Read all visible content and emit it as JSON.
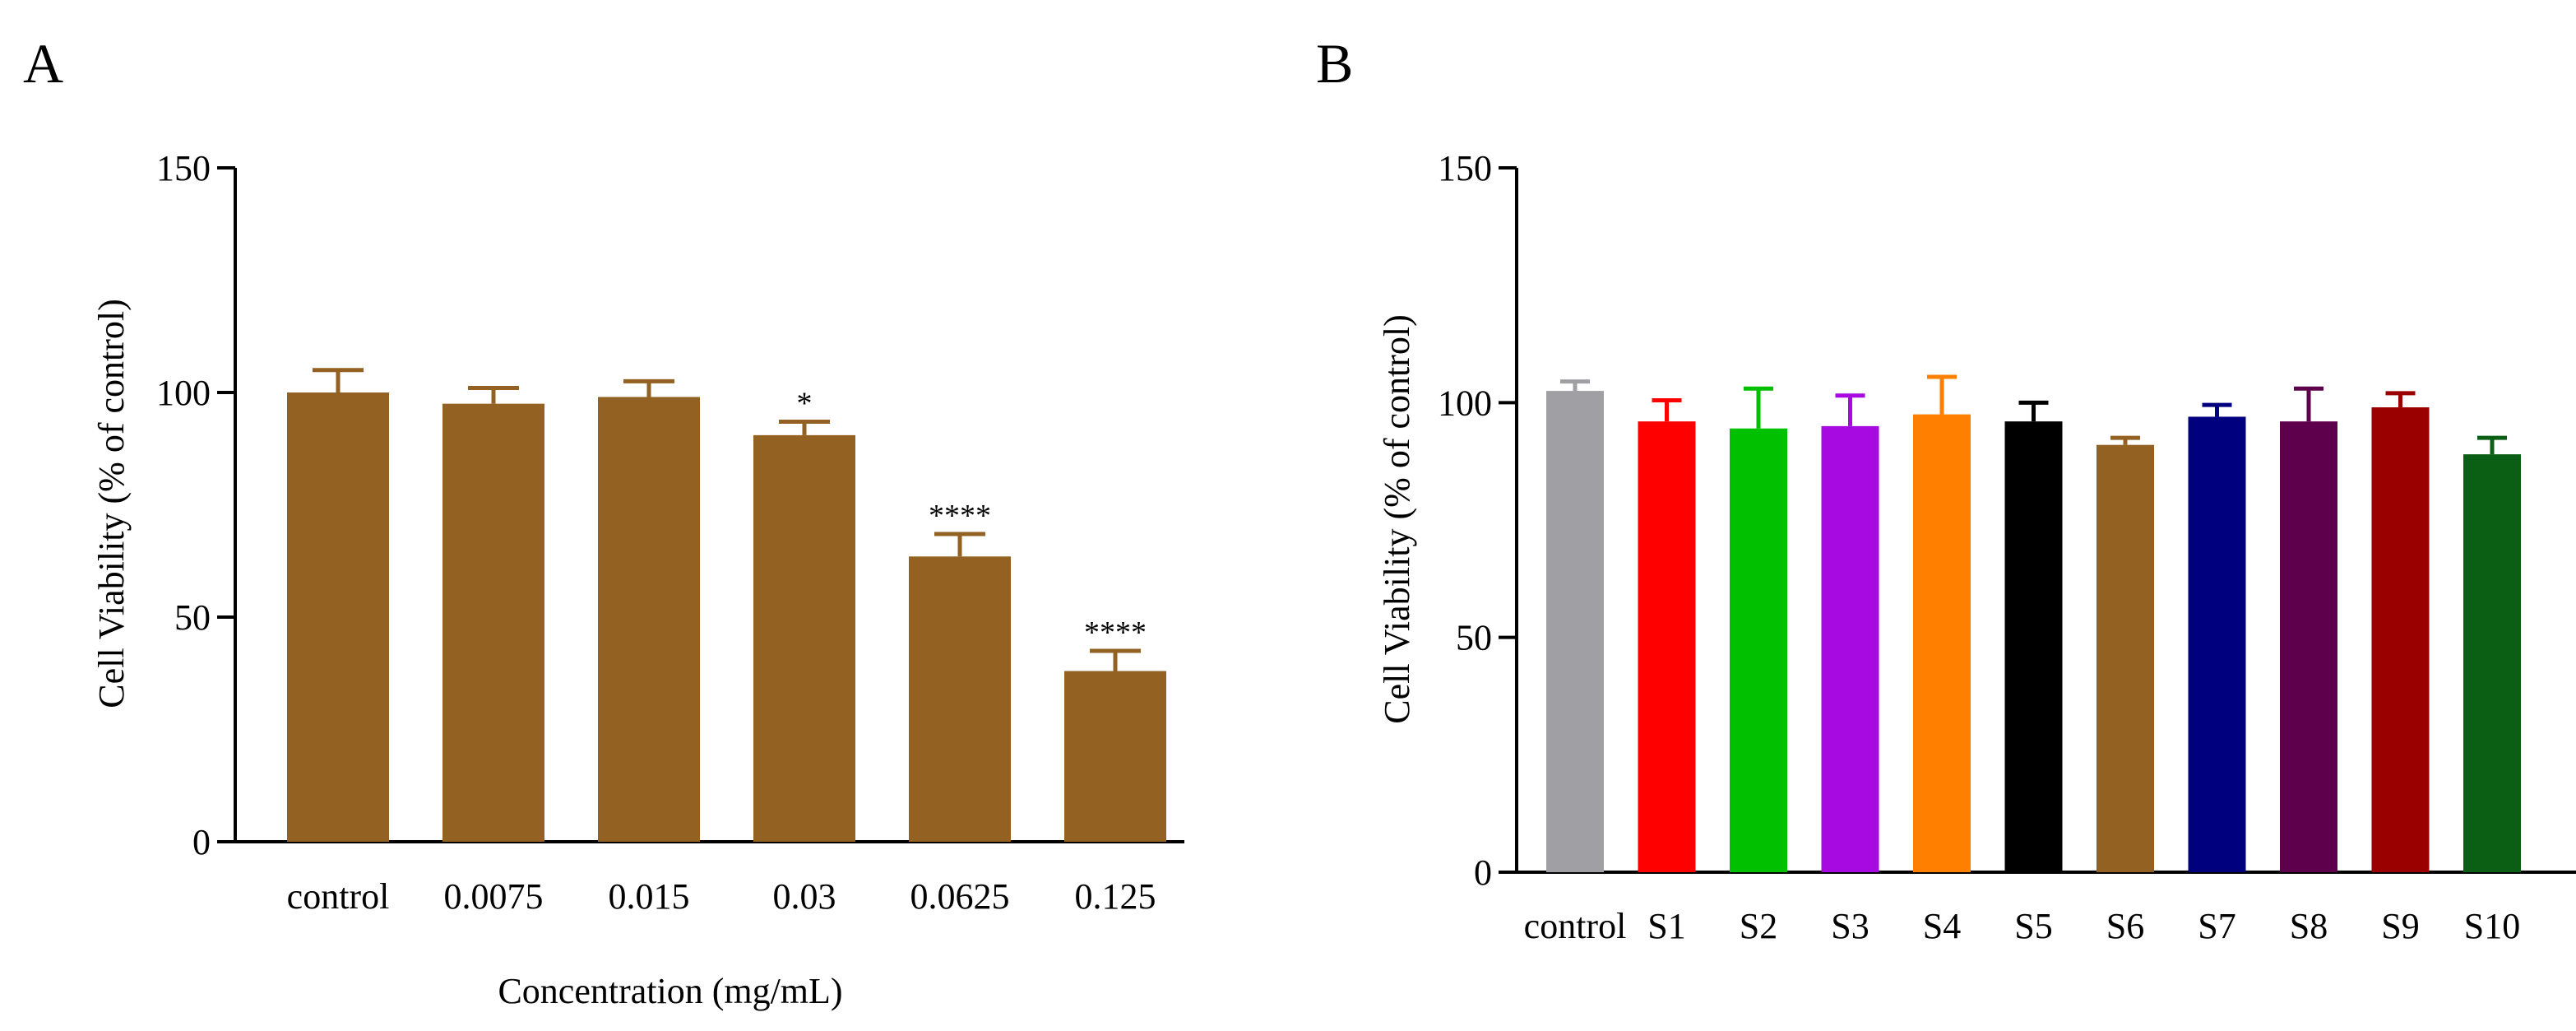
{
  "chart_data": [
    {
      "type": "bar",
      "panel_label": "A",
      "categories": [
        "control",
        "0.0075",
        "0.015",
        "0.03",
        "0.0625",
        "0.125"
      ],
      "values": [
        100,
        97.5,
        99,
        90.5,
        63.5,
        38
      ],
      "errors": [
        5,
        3.5,
        3.5,
        3,
        5,
        4.5
      ],
      "significance": [
        "",
        "",
        "",
        "*",
        "****",
        "****"
      ],
      "colors": [
        "#936121",
        "#936121",
        "#936121",
        "#936121",
        "#936121",
        "#936121"
      ],
      "xlabel": "Concentration (mg/mL)",
      "ylabel": "Cell Viability (% of control)",
      "ylim": [
        0,
        150
      ],
      "yticks": [
        0,
        50,
        100,
        150
      ]
    },
    {
      "type": "bar",
      "panel_label": "B",
      "categories": [
        "control",
        "S1",
        "S2",
        "S3",
        "S4",
        "S5",
        "S6",
        "S7",
        "S8",
        "S9",
        "S10"
      ],
      "values": [
        102.5,
        96,
        94.5,
        95,
        97.5,
        96,
        91,
        97,
        96,
        99,
        89
      ],
      "errors": [
        2,
        4.5,
        8.5,
        6.5,
        8,
        4,
        1.5,
        2.5,
        7,
        3,
        3.5
      ],
      "colors": [
        "#a09fa4",
        "#ff0000",
        "#00c000",
        "#a60ae0",
        "#ff7f00",
        "#000000",
        "#936121",
        "#00007f",
        "#5e004c",
        "#9b0000",
        "#0a5f14"
      ],
      "xlabel": "",
      "ylabel": "Cell Viability (% of control)",
      "ylim": [
        0,
        150
      ],
      "yticks": [
        0,
        50,
        100,
        150
      ]
    }
  ]
}
